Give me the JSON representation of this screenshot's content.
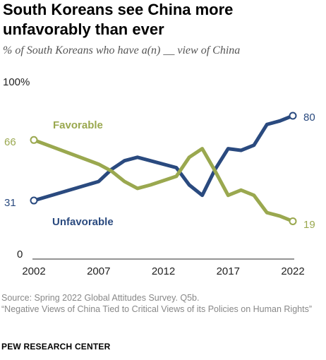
{
  "title": "South Koreans see China more unfavorably than ever",
  "subtitle": "% of South Koreans who have a(n) __ view of China",
  "source": "Source: Spring 2022 Global Attitudes Survey. Q5b.",
  "report": "“Negative Views of China Tied to Critical Views of its Policies on Human Rights”",
  "brand": "PEW RESEARCH CENTER",
  "colors": {
    "unfavorable": "#2a4a7f",
    "favorable": "#9aa84f",
    "axis": "#555555",
    "tick_text": "#222222"
  },
  "chart_data": {
    "type": "line",
    "title": "",
    "xlabel": "",
    "ylabel": "",
    "x": [
      2002,
      2007,
      2008,
      2009,
      2010,
      2011,
      2013,
      2014,
      2015,
      2016,
      2017,
      2018,
      2019,
      2020,
      2021,
      2022
    ],
    "ylim": [
      0,
      100
    ],
    "xlim": [
      2002,
      2022
    ],
    "x_ticks": [
      "2002",
      "2007",
      "2012",
      "2017",
      "2022"
    ],
    "y_tick_labels": [
      "100%",
      "0"
    ],
    "grid": false,
    "series": [
      {
        "name": "Unfavorable",
        "key": "unfavorable",
        "values": [
          31,
          42,
          49,
          54,
          56,
          54,
          50,
          40,
          34,
          49,
          61,
          60,
          63,
          75,
          77,
          80
        ],
        "start_label": "31",
        "end_label": "80"
      },
      {
        "name": "Favorable",
        "key": "favorable",
        "values": [
          66,
          52,
          48,
          42,
          38,
          40,
          45,
          56,
          61,
          48,
          34,
          37,
          34,
          24,
          22,
          19
        ],
        "start_label": "66",
        "end_label": "19"
      }
    ]
  }
}
